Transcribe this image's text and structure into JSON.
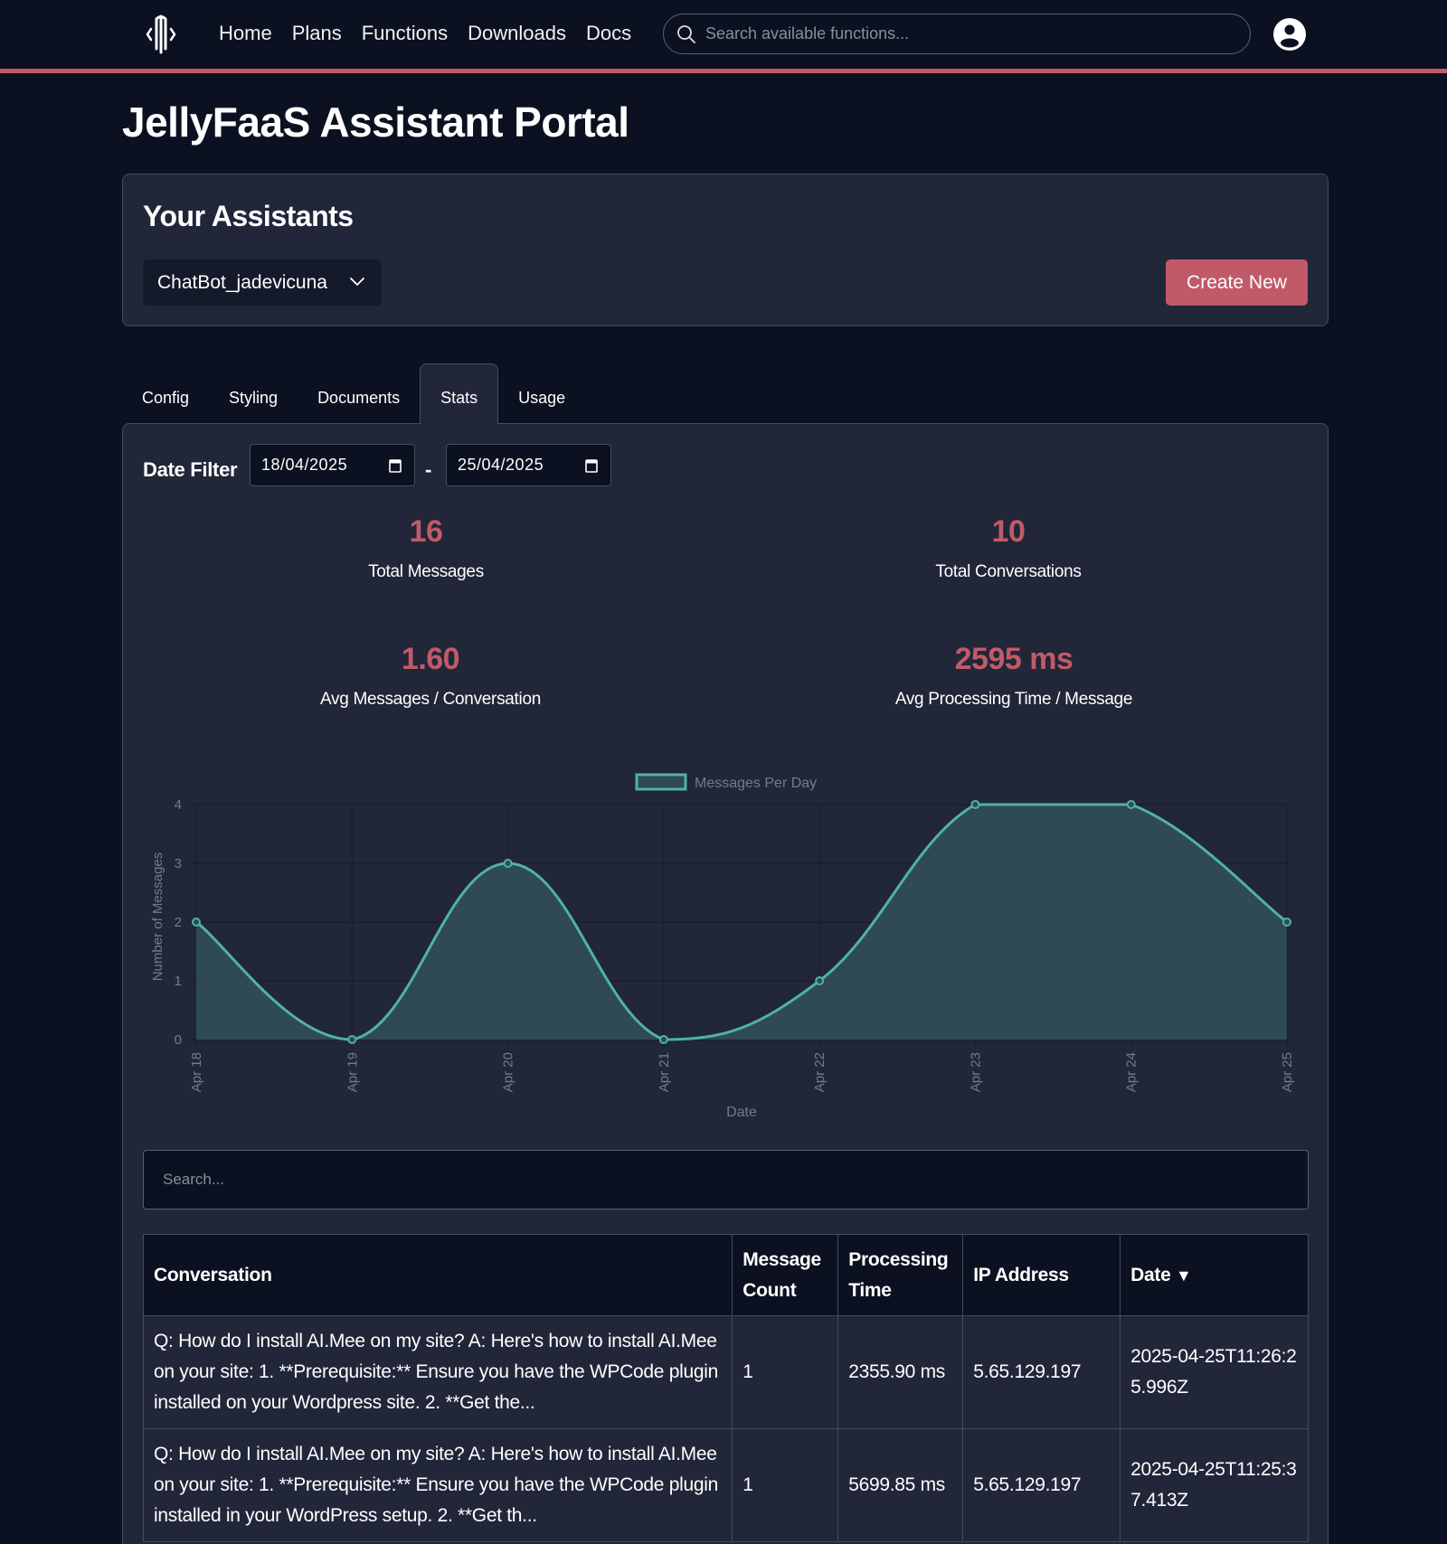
{
  "nav": {
    "links": [
      "Home",
      "Plans",
      "Functions",
      "Downloads",
      "Docs"
    ],
    "search_placeholder": "Search available functions...",
    "logo_icon": "jellyfish-logo-icon",
    "avatar_icon": "user-circle-icon"
  },
  "page": {
    "title": "JellyFaaS Assistant Portal"
  },
  "assistants": {
    "title": "Your Assistants",
    "selected": "ChatBot_jadevicuna",
    "create_label": "Create New"
  },
  "tabs": [
    {
      "label": "Config",
      "active": false
    },
    {
      "label": "Styling",
      "active": false
    },
    {
      "label": "Documents",
      "active": false
    },
    {
      "label": "Stats",
      "active": true
    },
    {
      "label": "Usage",
      "active": false
    }
  ],
  "filter": {
    "label": "Date Filter",
    "from": "18/04/2025",
    "separator": "-",
    "to": "25/04/2025"
  },
  "stats": [
    {
      "value": "16",
      "label": "Total Messages"
    },
    {
      "value": "10",
      "label": "Total Conversations"
    },
    {
      "value": "1.60",
      "label": "Avg Messages / Conversation"
    },
    {
      "value": "2595 ms",
      "label": "Avg Processing Time / Message"
    }
  ],
  "chart_data": {
    "type": "area",
    "categories": [
      "Apr 18",
      "Apr 19",
      "Apr 20",
      "Apr 21",
      "Apr 22",
      "Apr 23",
      "Apr 24",
      "Apr 25"
    ],
    "series": [
      {
        "name": "Messages Per Day",
        "values": [
          2,
          0,
          3,
          0,
          1,
          4,
          4,
          2
        ]
      }
    ],
    "title": "",
    "xlabel": "Date",
    "ylabel": "Number of Messages",
    "ylim": [
      0,
      4
    ],
    "yticks": [
      "0",
      "1",
      "2",
      "3",
      "4"
    ],
    "grid": true,
    "legend": "top-center",
    "colors": {
      "line": "#4fb3a2",
      "fill": "#2f4a52"
    }
  },
  "table": {
    "search_placeholder": "Search...",
    "headers": [
      "Conversation",
      "Message Count",
      "Processing Time",
      "IP Address",
      "Date"
    ],
    "sort_indicator": "▼",
    "rows": [
      {
        "conversation": "Q: How do I install AI.Mee on my site? A: Here's how to install AI.Mee on your site: 1. **Prerequisite:** Ensure you have the WPCode plugin installed on your Wordpress site. 2. **Get the...",
        "count": "1",
        "time": "2355.90 ms",
        "ip": "5.65.129.197",
        "date": "2025-04-25T11:26:25.996Z"
      },
      {
        "conversation": "Q: How do I install AI.Mee on my site? A: Here's how to install AI.Mee on your site: 1. **Prerequisite:** Ensure you have the WPCode plugin installed in your WordPress setup. 2. **Get th...",
        "count": "1",
        "time": "5699.85 ms",
        "ip": "5.65.129.197",
        "date": "2025-04-25T11:25:37.413Z"
      }
    ]
  },
  "colors": {
    "accent": "#c15a68",
    "background": "#0b1120",
    "panel": "#212639"
  }
}
